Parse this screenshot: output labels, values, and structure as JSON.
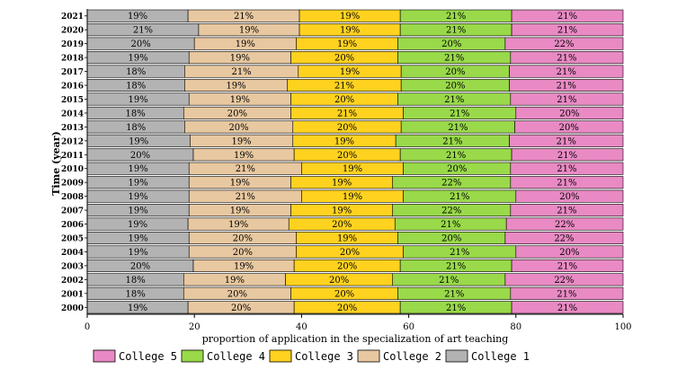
{
  "chart_data": {
    "type": "bar",
    "orientation": "horizontal",
    "stacked": true,
    "title": "",
    "xlabel": "proportion of application in the specialization of art teaching",
    "ylabel": "Time (year)",
    "xlim": [
      0,
      100
    ],
    "xticks": [
      0,
      20,
      40,
      60,
      80,
      100
    ],
    "categories": [
      "2000",
      "2001",
      "2002",
      "2003",
      "2004",
      "2005",
      "2006",
      "2007",
      "2008",
      "2009",
      "2010",
      "2011",
      "2012",
      "2013",
      "2014",
      "2015",
      "2016",
      "2017",
      "2018",
      "2019",
      "2020",
      "2021"
    ],
    "series": [
      {
        "name": "College 1",
        "color": "#b3b3b3",
        "values": [
          19,
          18,
          18,
          20,
          19,
          19,
          19,
          19,
          19,
          19,
          19,
          20,
          19,
          18,
          18,
          19,
          18,
          18,
          19,
          20,
          21,
          19
        ],
        "labels": [
          "19%",
          "18%",
          "18%",
          "20%",
          "19%",
          "19%",
          "19%",
          "19%",
          "19%",
          "19%",
          "19%",
          "20%",
          "19%",
          "18%",
          "18%",
          "19%",
          "18%",
          "18%",
          "19%",
          "20%",
          "21%",
          "19%"
        ]
      },
      {
        "name": "College 2",
        "color": "#e8c8a0",
        "values": [
          20,
          20,
          19,
          19,
          20,
          20,
          19,
          19,
          21,
          19,
          21,
          19,
          19,
          20,
          20,
          19,
          19,
          21,
          19,
          19,
          19,
          21
        ],
        "labels": [
          "20%",
          "20%",
          "19%",
          "19%",
          "20%",
          "20%",
          "19%",
          "19%",
          "21%",
          "19%",
          "21%",
          "19%",
          "19%",
          "20%",
          "20%",
          "19%",
          "19%",
          "21%",
          "19%",
          "19%",
          "19%",
          "21%"
        ]
      },
      {
        "name": "College 3",
        "color": "#ffd21f",
        "values": [
          20,
          20,
          20,
          20,
          20,
          19,
          20,
          19,
          19,
          19,
          19,
          20,
          19,
          20,
          21,
          20,
          21,
          19,
          20,
          19,
          19,
          19
        ],
        "labels": [
          "20%",
          "20%",
          "20%",
          "20%",
          "20%",
          "19%",
          "20%",
          "19%",
          "19%",
          "19%",
          "19%",
          "20%",
          "19%",
          "20%",
          "21%",
          "20%",
          "21%",
          "19%",
          "20%",
          "19%",
          "19%",
          "19%"
        ]
      },
      {
        "name": "College 4",
        "color": "#99d94a",
        "values": [
          21,
          21,
          21,
          21,
          21,
          20,
          21,
          22,
          21,
          22,
          20,
          21,
          21,
          21,
          21,
          21,
          20,
          20,
          21,
          20,
          21,
          21
        ],
        "labels": [
          "21%",
          "21%",
          "21%",
          "21%",
          "21%",
          "20%",
          "21%",
          "22%",
          "21%",
          "22%",
          "20%",
          "21%",
          "21%",
          "21%",
          "21%",
          "21%",
          "20%",
          "20%",
          "21%",
          "20%",
          "21%",
          "21%"
        ]
      },
      {
        "name": "College 5",
        "color": "#e98ac4",
        "values": [
          21,
          21,
          22,
          21,
          20,
          22,
          22,
          21,
          20,
          21,
          21,
          21,
          21,
          20,
          20,
          21,
          21,
          21,
          21,
          22,
          21,
          21
        ],
        "labels": [
          "21%",
          "21%",
          "22%",
          "21%",
          "20%",
          "22%",
          "22%",
          "21%",
          "20%",
          "21%",
          "21%",
          "21%",
          "21%",
          "20%",
          "20%",
          "21%",
          "21%",
          "21%",
          "21%",
          "22%",
          "21%",
          "21%"
        ]
      }
    ],
    "legend": {
      "position": "bottom",
      "order": [
        "College 5",
        "College 4",
        "College 3",
        "College 2",
        "College 1"
      ]
    }
  }
}
